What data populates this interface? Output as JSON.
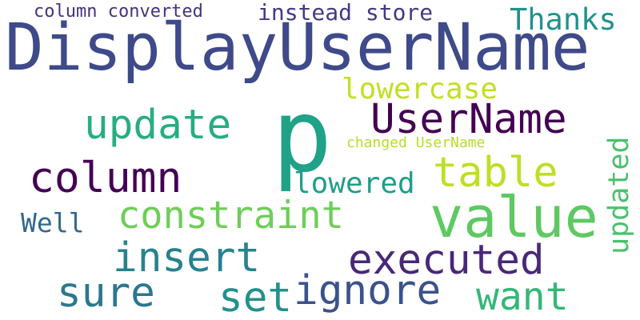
{
  "cloud": {
    "words": [
      {
        "text": "DisplayUserName",
        "color": "#3e4a89"
      },
      {
        "text": "p",
        "color": "#1fa287"
      },
      {
        "text": "value",
        "color": "#5ec962"
      },
      {
        "text": "UserName",
        "color": "#440154"
      },
      {
        "text": "column",
        "color": "#440154"
      },
      {
        "text": "update",
        "color": "#27ad81"
      },
      {
        "text": "table",
        "color": "#bddf26"
      },
      {
        "text": "constraint",
        "color": "#6ece58"
      },
      {
        "text": "insert",
        "color": "#26828e"
      },
      {
        "text": "executed",
        "color": "#482878"
      },
      {
        "text": "sure",
        "color": "#2a788e"
      },
      {
        "text": "set",
        "color": "#21918c"
      },
      {
        "text": "ignore",
        "color": "#3b528b"
      },
      {
        "text": "want",
        "color": "#35b779"
      },
      {
        "text": "Thanks",
        "color": "#21918c"
      },
      {
        "text": "lowercase",
        "color": "#c2df23"
      },
      {
        "text": "lowered",
        "color": "#1f9e89"
      },
      {
        "text": "Well",
        "color": "#31688e"
      },
      {
        "text": "updated",
        "color": "#4ac16d"
      },
      {
        "text": "column converted",
        "color": "#46327e"
      },
      {
        "text": "instead store",
        "color": "#443983"
      },
      {
        "text": "changed UserName",
        "color": "#b5de2b"
      }
    ]
  }
}
